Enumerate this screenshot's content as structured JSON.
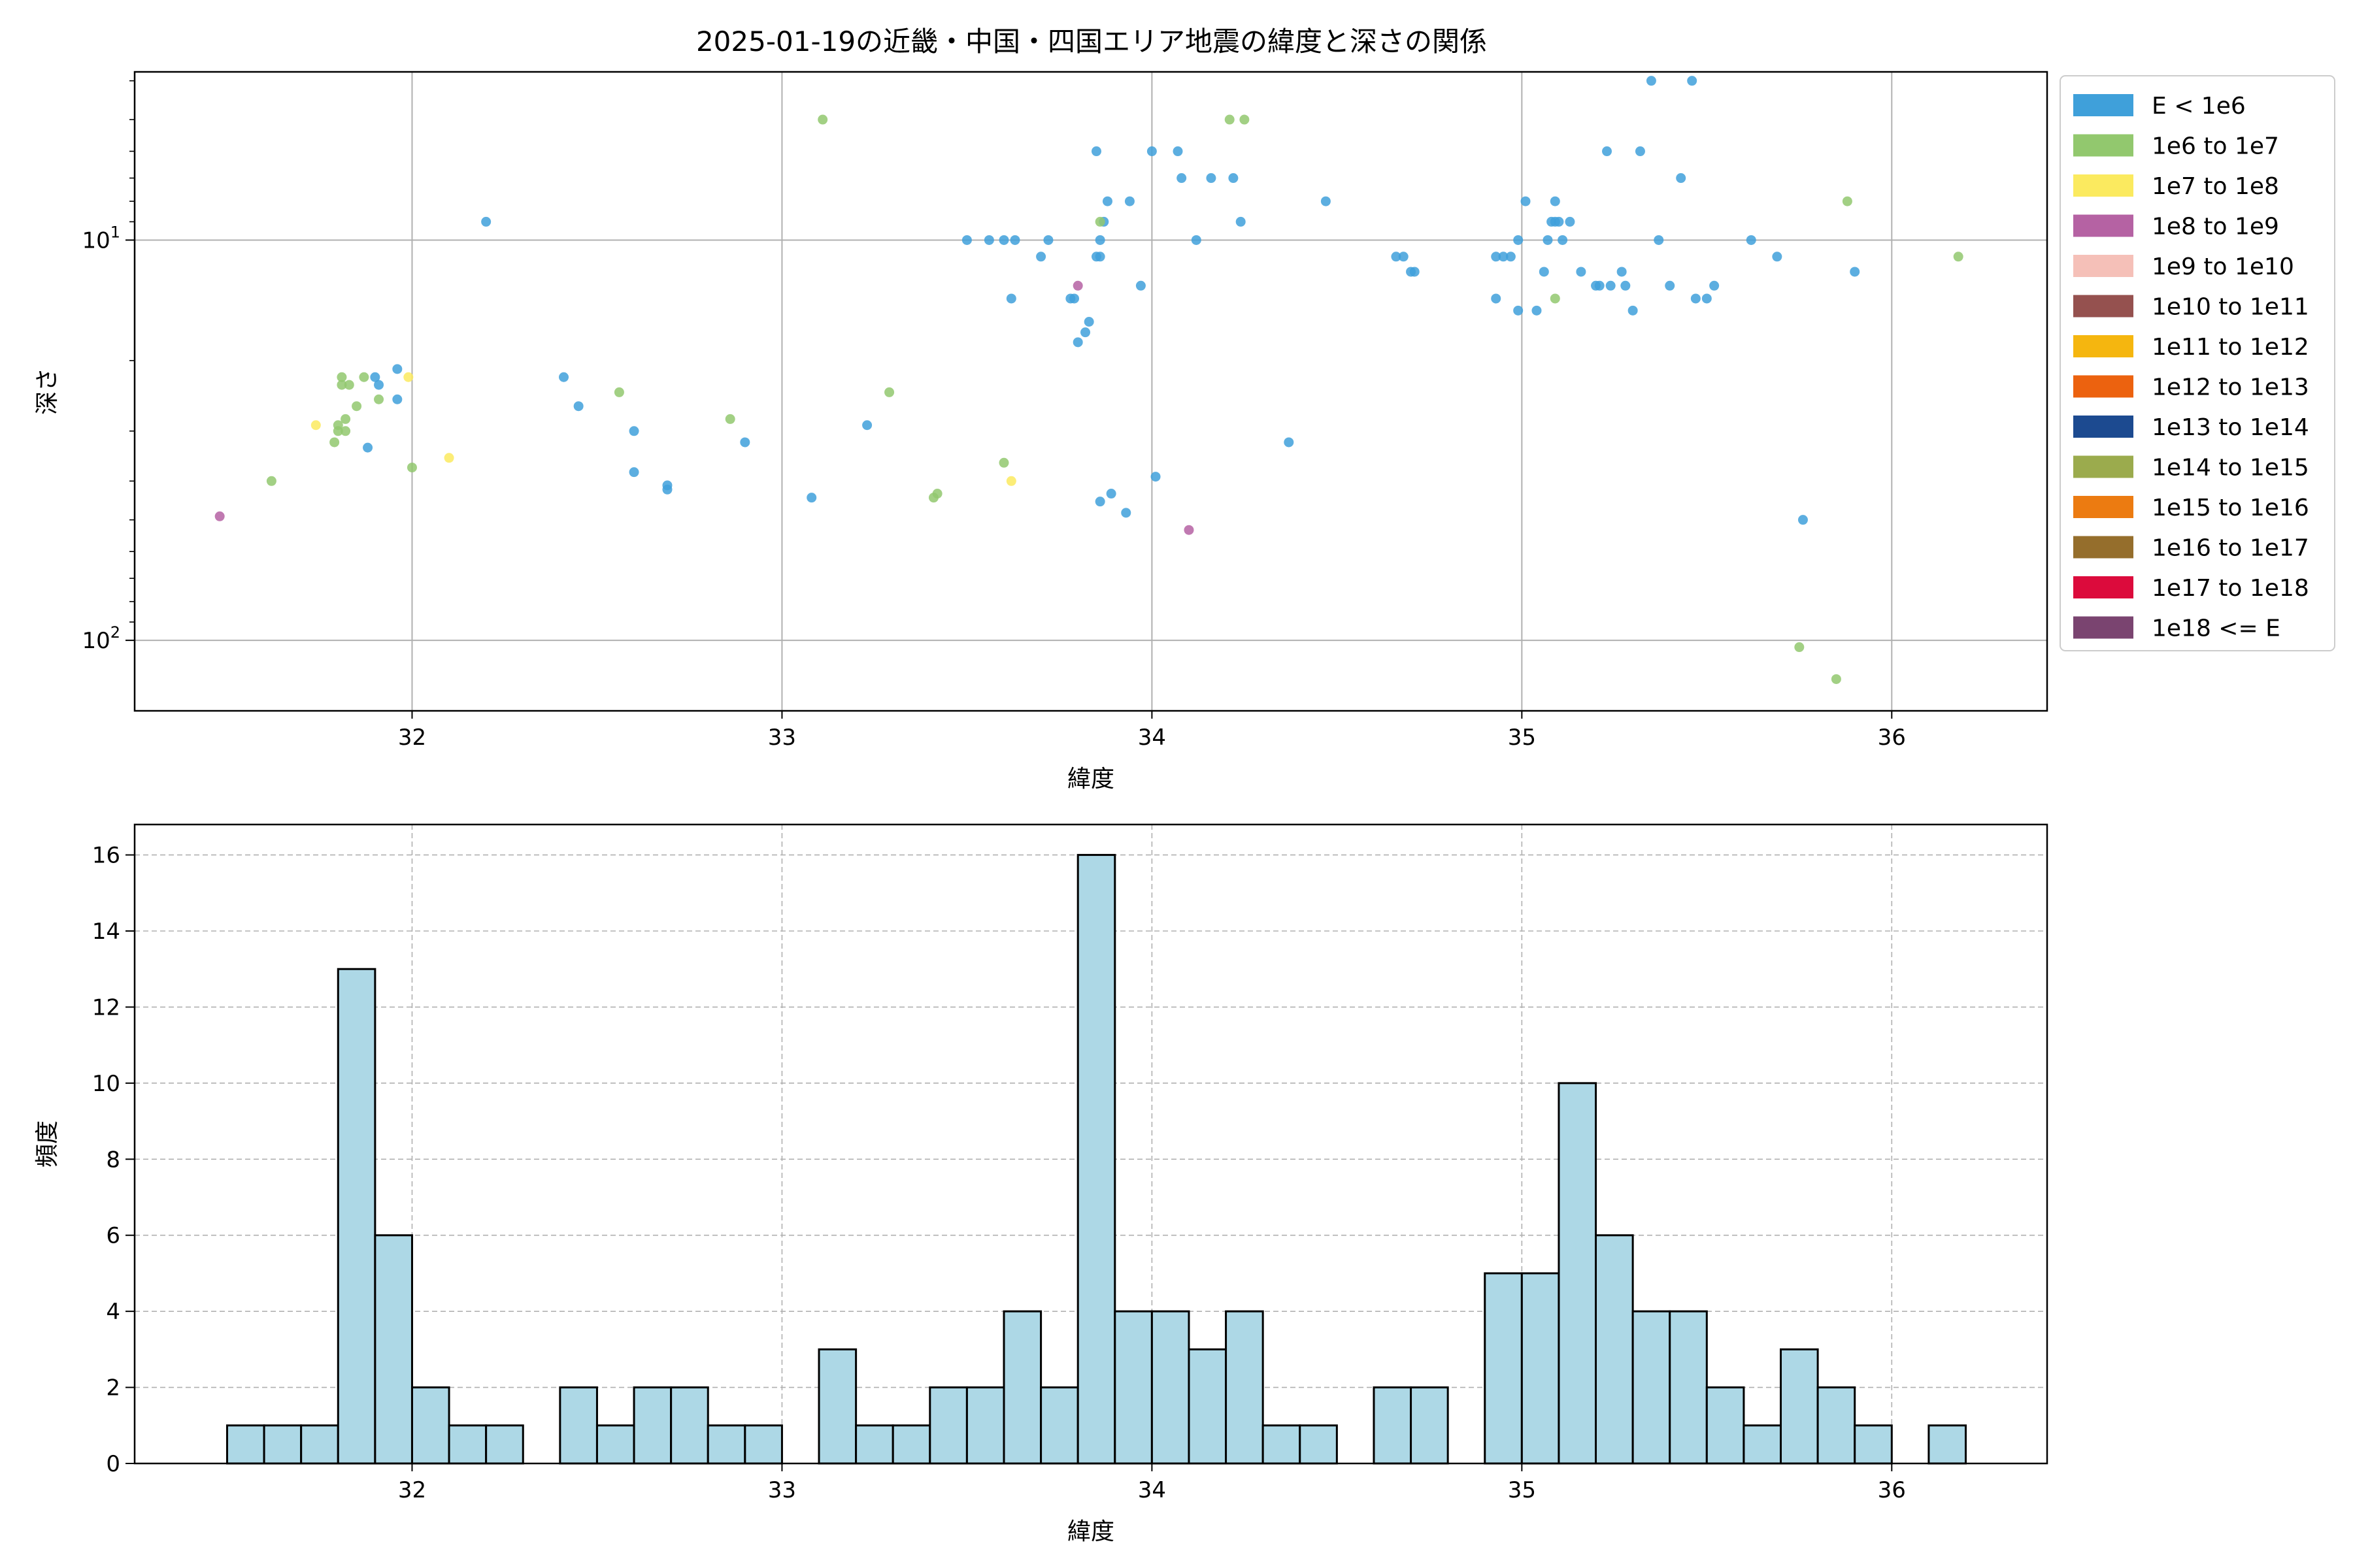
{
  "figure": {
    "title": "2025-01-19の近畿・中国・四国エリア地震の緯度と深さの関係"
  },
  "chart_data": [
    {
      "type": "scatter",
      "xlabel": "緯度",
      "ylabel": "深さ",
      "xlim": [
        31.25,
        36.42
      ],
      "ylim": [
        150,
        3.8
      ],
      "yscale": "log",
      "y_inverted": true,
      "grid": true,
      "x_ticks": [
        32,
        33,
        34,
        35,
        36
      ],
      "y_ticks": [
        {
          "value": 10,
          "label": "10^1"
        },
        {
          "value": 100,
          "label": "10^2"
        }
      ],
      "legend_position": "outside-right",
      "legend": [
        {
          "label": "E < 1e6",
          "color": "#3fa0da"
        },
        {
          "label": "1e6 to 1e7",
          "color": "#92c86e"
        },
        {
          "label": "1e7 to 1e8",
          "color": "#fbea5f"
        },
        {
          "label": "1e8 to 1e9",
          "color": "#b562a3"
        },
        {
          "label": "1e9 to 1e10",
          "color": "#f5c0b8"
        },
        {
          "label": "1e10 to 1e11",
          "color": "#95514f"
        },
        {
          "label": "1e11 to 1e12",
          "color": "#f5b60f"
        },
        {
          "label": "1e12 to 1e13",
          "color": "#ec620f"
        },
        {
          "label": "1e13 to 1e14",
          "color": "#1c4a90"
        },
        {
          "label": "1e14 to 1e15",
          "color": "#9bab4d"
        },
        {
          "label": "1e15 to 1e16",
          "color": "#ec7b11"
        },
        {
          "label": "1e16 to 1e17",
          "color": "#956e2c"
        },
        {
          "label": "1e17 to 1e18",
          "color": "#dc0b3c"
        },
        {
          "label": "1e18 <= E",
          "color": "#7a4470"
        }
      ],
      "series": [
        {
          "class": 0,
          "points": [
            [
              31.9,
              22
            ],
            [
              31.96,
              21
            ],
            [
              31.91,
              23
            ],
            [
              31.96,
              25
            ],
            [
              31.88,
              33
            ],
            [
              32.2,
              9
            ],
            [
              32.41,
              22
            ],
            [
              32.45,
              26
            ],
            [
              32.6,
              30
            ],
            [
              32.6,
              38
            ],
            [
              32.69,
              42
            ],
            [
              32.69,
              41
            ],
            [
              32.9,
              32
            ],
            [
              33.08,
              44
            ],
            [
              33.23,
              29
            ],
            [
              33.5,
              10
            ],
            [
              33.56,
              10
            ],
            [
              33.6,
              10
            ],
            [
              33.62,
              14
            ],
            [
              33.63,
              10
            ],
            [
              33.7,
              11
            ],
            [
              33.72,
              10
            ],
            [
              33.78,
              14
            ],
            [
              33.79,
              14
            ],
            [
              33.85,
              6
            ],
            [
              33.8,
              18
            ],
            [
              33.82,
              17
            ],
            [
              33.83,
              16
            ],
            [
              33.85,
              11
            ],
            [
              33.86,
              10
            ],
            [
              33.86,
              11
            ],
            [
              33.87,
              9
            ],
            [
              33.88,
              8
            ],
            [
              33.86,
              45
            ],
            [
              33.89,
              43
            ],
            [
              33.93,
              48
            ],
            [
              33.94,
              8
            ],
            [
              33.97,
              13
            ],
            [
              34.0,
              6
            ],
            [
              34.07,
              6
            ],
            [
              34.08,
              7
            ],
            [
              34.01,
              39
            ],
            [
              34.12,
              10
            ],
            [
              34.16,
              7
            ],
            [
              34.22,
              7
            ],
            [
              34.24,
              9
            ],
            [
              34.37,
              32
            ],
            [
              34.47,
              8
            ],
            [
              34.66,
              11
            ],
            [
              34.68,
              11
            ],
            [
              34.7,
              12
            ],
            [
              34.71,
              12
            ],
            [
              34.93,
              11
            ],
            [
              34.95,
              11
            ],
            [
              34.97,
              11
            ],
            [
              34.93,
              14
            ],
            [
              34.99,
              10
            ],
            [
              34.99,
              15
            ],
            [
              35.01,
              8
            ],
            [
              35.04,
              15
            ],
            [
              35.06,
              12
            ],
            [
              35.07,
              10
            ],
            [
              35.08,
              9
            ],
            [
              35.1,
              9
            ],
            [
              35.11,
              10
            ],
            [
              35.09,
              8
            ],
            [
              35.09,
              9
            ],
            [
              35.13,
              9
            ],
            [
              35.16,
              12
            ],
            [
              35.2,
              13
            ],
            [
              35.21,
              13
            ],
            [
              35.24,
              13
            ],
            [
              35.23,
              6
            ],
            [
              35.27,
              12
            ],
            [
              35.28,
              13
            ],
            [
              35.3,
              15
            ],
            [
              35.32,
              6
            ],
            [
              35.35,
              4
            ],
            [
              35.37,
              10
            ],
            [
              35.4,
              13
            ],
            [
              35.43,
              7
            ],
            [
              35.46,
              4
            ],
            [
              35.47,
              14
            ],
            [
              35.5,
              14
            ],
            [
              35.52,
              13
            ],
            [
              35.62,
              10
            ],
            [
              35.69,
              11
            ],
            [
              35.76,
              50
            ],
            [
              35.9,
              12
            ]
          ]
        },
        {
          "class": 1,
          "points": [
            [
              31.62,
              40
            ],
            [
              31.8,
              29
            ],
            [
              31.79,
              32
            ],
            [
              31.8,
              30
            ],
            [
              31.81,
              22
            ],
            [
              31.81,
              23
            ],
            [
              31.82,
              30
            ],
            [
              31.82,
              28
            ],
            [
              31.83,
              23
            ],
            [
              31.85,
              26
            ],
            [
              31.87,
              22
            ],
            [
              31.91,
              25
            ],
            [
              32.0,
              37
            ],
            [
              32.56,
              24
            ],
            [
              32.86,
              28
            ],
            [
              33.11,
              5
            ],
            [
              33.29,
              24
            ],
            [
              33.41,
              44
            ],
            [
              33.42,
              43
            ],
            [
              33.6,
              36
            ],
            [
              33.86,
              9
            ],
            [
              34.21,
              5
            ],
            [
              34.25,
              5
            ],
            [
              35.09,
              14
            ],
            [
              35.75,
              104
            ],
            [
              35.85,
              125
            ],
            [
              35.88,
              8
            ],
            [
              36.18,
              11
            ]
          ]
        },
        {
          "class": 2,
          "points": [
            [
              31.74,
              29
            ],
            [
              31.99,
              22
            ],
            [
              32.1,
              35
            ],
            [
              33.62,
              40
            ]
          ]
        },
        {
          "class": 3,
          "points": [
            [
              31.48,
              49
            ],
            [
              33.8,
              13
            ],
            [
              34.1,
              53
            ]
          ]
        }
      ]
    },
    {
      "type": "bar",
      "subtype": "histogram",
      "xlabel": "緯度",
      "ylabel": "頻度",
      "xlim": [
        31.25,
        36.42
      ],
      "ylim": [
        0,
        16.8
      ],
      "grid": true,
      "grid_style": "dashed",
      "x_ticks": [
        32,
        33,
        34,
        35,
        36
      ],
      "y_ticks": [
        0,
        2,
        4,
        6,
        8,
        10,
        12,
        14,
        16
      ],
      "bar_color": "#add8e6",
      "edge_color": "#000000",
      "bin_start": 31.5,
      "bin_width": 0.1,
      "values": [
        1,
        1,
        1,
        13,
        6,
        2,
        1,
        1,
        0,
        2,
        1,
        2,
        2,
        1,
        1,
        0,
        3,
        1,
        1,
        2,
        2,
        4,
        2,
        16,
        4,
        4,
        3,
        4,
        1,
        1,
        0,
        2,
        2,
        0,
        5,
        5,
        10,
        6,
        4,
        4,
        2,
        1,
        3,
        2,
        1,
        0,
        1
      ]
    }
  ]
}
